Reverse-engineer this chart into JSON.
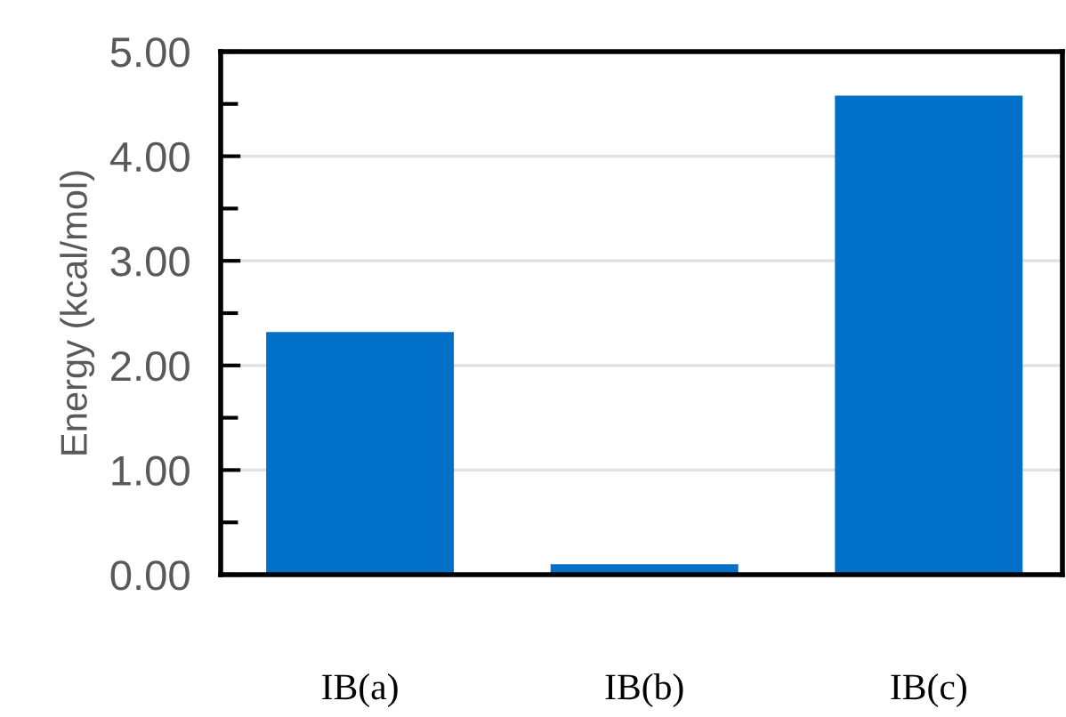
{
  "chart_data": {
    "type": "bar",
    "ylabel": "Energy (kcal/mol)",
    "categories": [
      "IB(a)",
      "IB(b)",
      "IB(c)"
    ],
    "values": [
      2.32,
      0.1,
      4.58
    ],
    "color": "#0070c8",
    "ylim": [
      0,
      5
    ],
    "yticks": [
      {
        "value": 0,
        "label": "0.00"
      },
      {
        "value": 0.5,
        "label": null
      },
      {
        "value": 1,
        "label": "1.00"
      },
      {
        "value": 1.5,
        "label": null
      },
      {
        "value": 2,
        "label": "2.00"
      },
      {
        "value": 2.5,
        "label": null
      },
      {
        "value": 3,
        "label": "3.00"
      },
      {
        "value": 3.5,
        "label": null
      },
      {
        "value": 4,
        "label": "4.00"
      },
      {
        "value": 4.5,
        "label": null
      },
      {
        "value": 5,
        "label": "5.00"
      }
    ],
    "grid": "y",
    "legend": false
  }
}
